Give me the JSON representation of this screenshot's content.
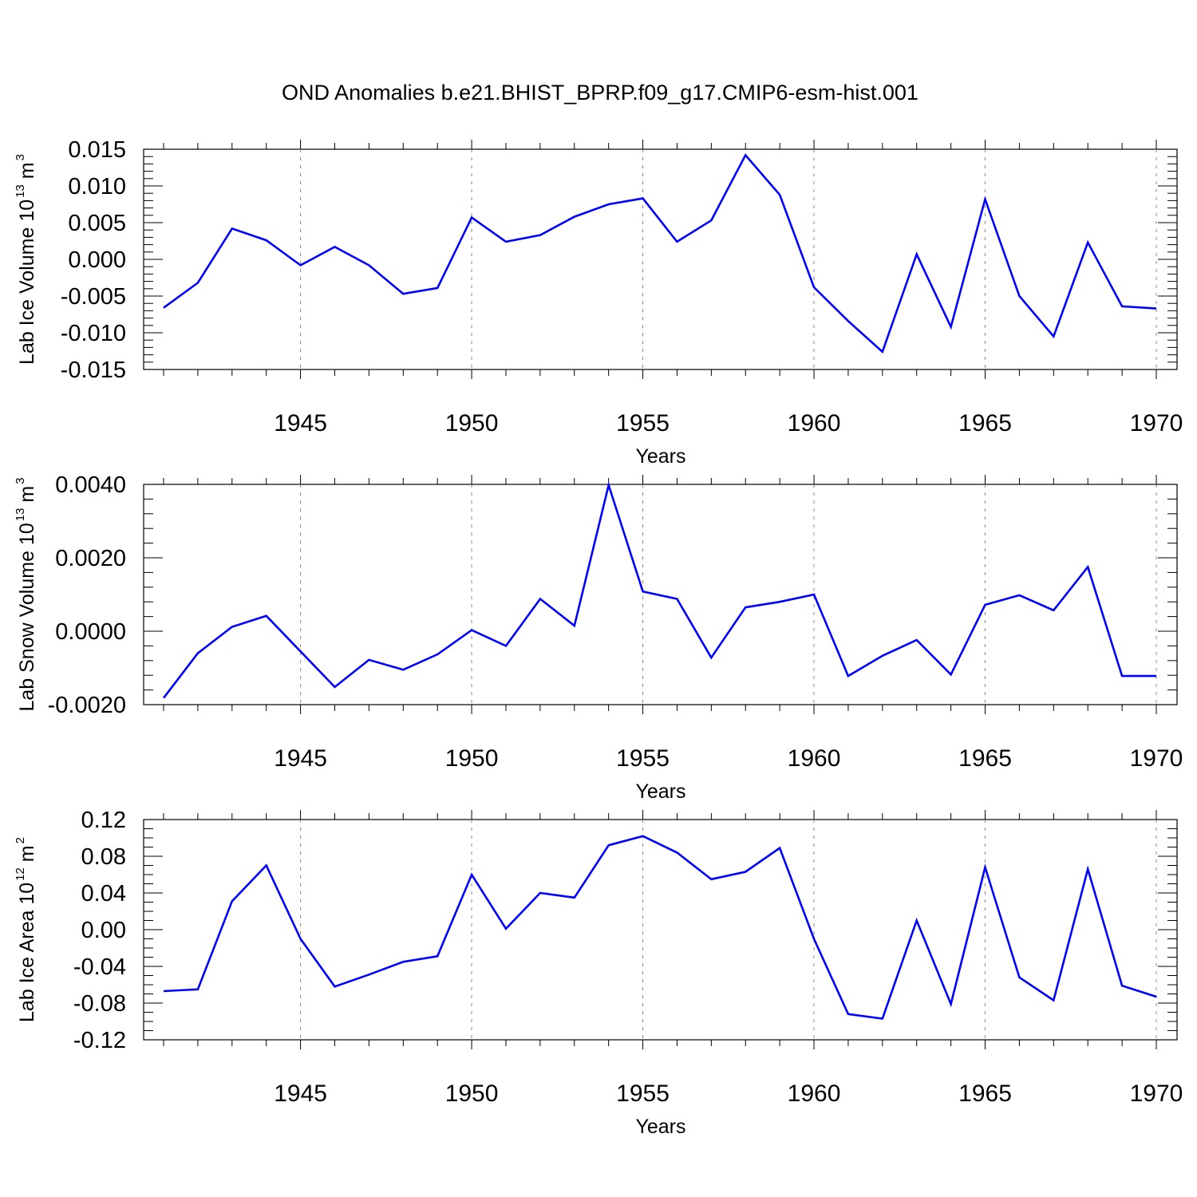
{
  "title": "OND Anomalies b.e21.BHIST_BPRP.f09_g17.CMIP6-esm-hist.001",
  "chart_data": [
    {
      "type": "line",
      "title": "OND Anomalies b.e21.BHIST_BPRP.f09_g17.CMIP6-esm-hist.001",
      "xlabel": "Years",
      "ylabel": "Lab Ice Volume 10",
      "ylabel_exp": "13",
      "ylabel_unit": " m",
      "ylabel_unit_exp": "3",
      "xlim": [
        1941,
        1970
      ],
      "ylim": [
        -0.015,
        0.015
      ],
      "x_ticks": [
        1945,
        1950,
        1955,
        1960,
        1965,
        1970
      ],
      "x_tick_labels": [
        "1945",
        "1950",
        "1955",
        "1960",
        "1965",
        "1970"
      ],
      "y_ticks": [
        -0.015,
        -0.01,
        -0.005,
        0.0,
        0.005,
        0.01,
        0.015
      ],
      "y_tick_labels": [
        "-0.015",
        "-0.010",
        "-0.005",
        "0.000",
        "0.005",
        "0.010",
        "0.015"
      ],
      "grid": "vertical dashed at major x ticks",
      "series": [
        {
          "color": "#0000ff",
          "x": [
            1941,
            1942,
            1943,
            1944,
            1945,
            1946,
            1947,
            1948,
            1949,
            1950,
            1951,
            1952,
            1953,
            1954,
            1955,
            1956,
            1957,
            1958,
            1959,
            1960,
            1961,
            1962,
            1963,
            1964,
            1965,
            1966,
            1967,
            1968,
            1969,
            1970
          ],
          "y": [
            -0.0066,
            -0.0032,
            0.0042,
            0.0026,
            -0.0008,
            0.0017,
            -0.0008,
            -0.0047,
            -0.0039,
            0.0057,
            0.0024,
            0.0033,
            0.0058,
            0.0075,
            0.0083,
            0.0024,
            0.0053,
            0.0142,
            0.0088,
            -0.0038,
            -0.0084,
            -0.0126,
            0.0007,
            -0.0092,
            0.0082,
            -0.005,
            -0.0105,
            0.0023,
            -0.0064,
            -0.0067
          ]
        }
      ]
    },
    {
      "type": "line",
      "xlabel": "Years",
      "ylabel": "Lab Snow Volume 10",
      "ylabel_exp": "13",
      "ylabel_unit": " m",
      "ylabel_unit_exp": "3",
      "xlim": [
        1941,
        1970
      ],
      "ylim": [
        -0.002,
        0.004
      ],
      "x_ticks": [
        1945,
        1950,
        1955,
        1960,
        1965,
        1970
      ],
      "x_tick_labels": [
        "1945",
        "1950",
        "1955",
        "1960",
        "1965",
        "1970"
      ],
      "y_ticks": [
        -0.002,
        0.0,
        0.002,
        0.004
      ],
      "y_tick_labels": [
        "-0.0020",
        "0.0000",
        "0.0020",
        "0.0040"
      ],
      "grid": "vertical dashed at major x ticks",
      "series": [
        {
          "color": "#0000ff",
          "x": [
            1941,
            1942,
            1943,
            1944,
            1945,
            1946,
            1947,
            1948,
            1949,
            1950,
            1951,
            1952,
            1953,
            1954,
            1955,
            1956,
            1957,
            1958,
            1959,
            1960,
            1961,
            1962,
            1963,
            1964,
            1965,
            1966,
            1967,
            1968,
            1969,
            1970
          ],
          "y": [
            -0.00182,
            -0.0006,
            0.00012,
            0.00042,
            -0.00055,
            -0.00152,
            -0.00078,
            -0.00105,
            -0.00063,
            3e-05,
            -0.0004,
            0.00088,
            0.00015,
            0.00398,
            0.00108,
            0.00088,
            -0.00072,
            0.00065,
            0.0008,
            0.001,
            -0.00122,
            -0.00067,
            -0.00024,
            -0.00118,
            0.00072,
            0.00098,
            0.00057,
            0.00175,
            -0.00122,
            -0.00122
          ]
        }
      ]
    },
    {
      "type": "line",
      "xlabel": "Years",
      "ylabel": "Lab Ice Area 10",
      "ylabel_exp": "12",
      "ylabel_unit": " m",
      "ylabel_unit_exp": "2",
      "xlim": [
        1941,
        1970
      ],
      "ylim": [
        -0.12,
        0.12
      ],
      "x_ticks": [
        1945,
        1950,
        1955,
        1960,
        1965,
        1970
      ],
      "x_tick_labels": [
        "1945",
        "1950",
        "1955",
        "1960",
        "1965",
        "1970"
      ],
      "y_ticks": [
        -0.12,
        -0.08,
        -0.04,
        0.0,
        0.04,
        0.08,
        0.12
      ],
      "y_tick_labels": [
        "-0.12",
        "-0.08",
        "-0.04",
        "0.00",
        "0.04",
        "0.08",
        "0.12"
      ],
      "grid": "vertical dashed at major x ticks",
      "series": [
        {
          "color": "#0000ff",
          "x": [
            1941,
            1942,
            1943,
            1944,
            1945,
            1946,
            1947,
            1948,
            1949,
            1950,
            1951,
            1952,
            1953,
            1954,
            1955,
            1956,
            1957,
            1958,
            1959,
            1960,
            1961,
            1962,
            1963,
            1964,
            1965,
            1966,
            1967,
            1968,
            1969,
            1970
          ],
          "y": [
            -0.067,
            -0.065,
            0.031,
            0.07,
            -0.01,
            -0.062,
            -0.049,
            -0.035,
            -0.029,
            0.06,
            0.001,
            0.04,
            0.035,
            0.092,
            0.102,
            0.084,
            0.055,
            0.063,
            0.089,
            -0.01,
            -0.092,
            -0.097,
            0.01,
            -0.081,
            0.068,
            -0.052,
            -0.077,
            0.066,
            -0.061,
            -0.073
          ]
        }
      ]
    }
  ]
}
